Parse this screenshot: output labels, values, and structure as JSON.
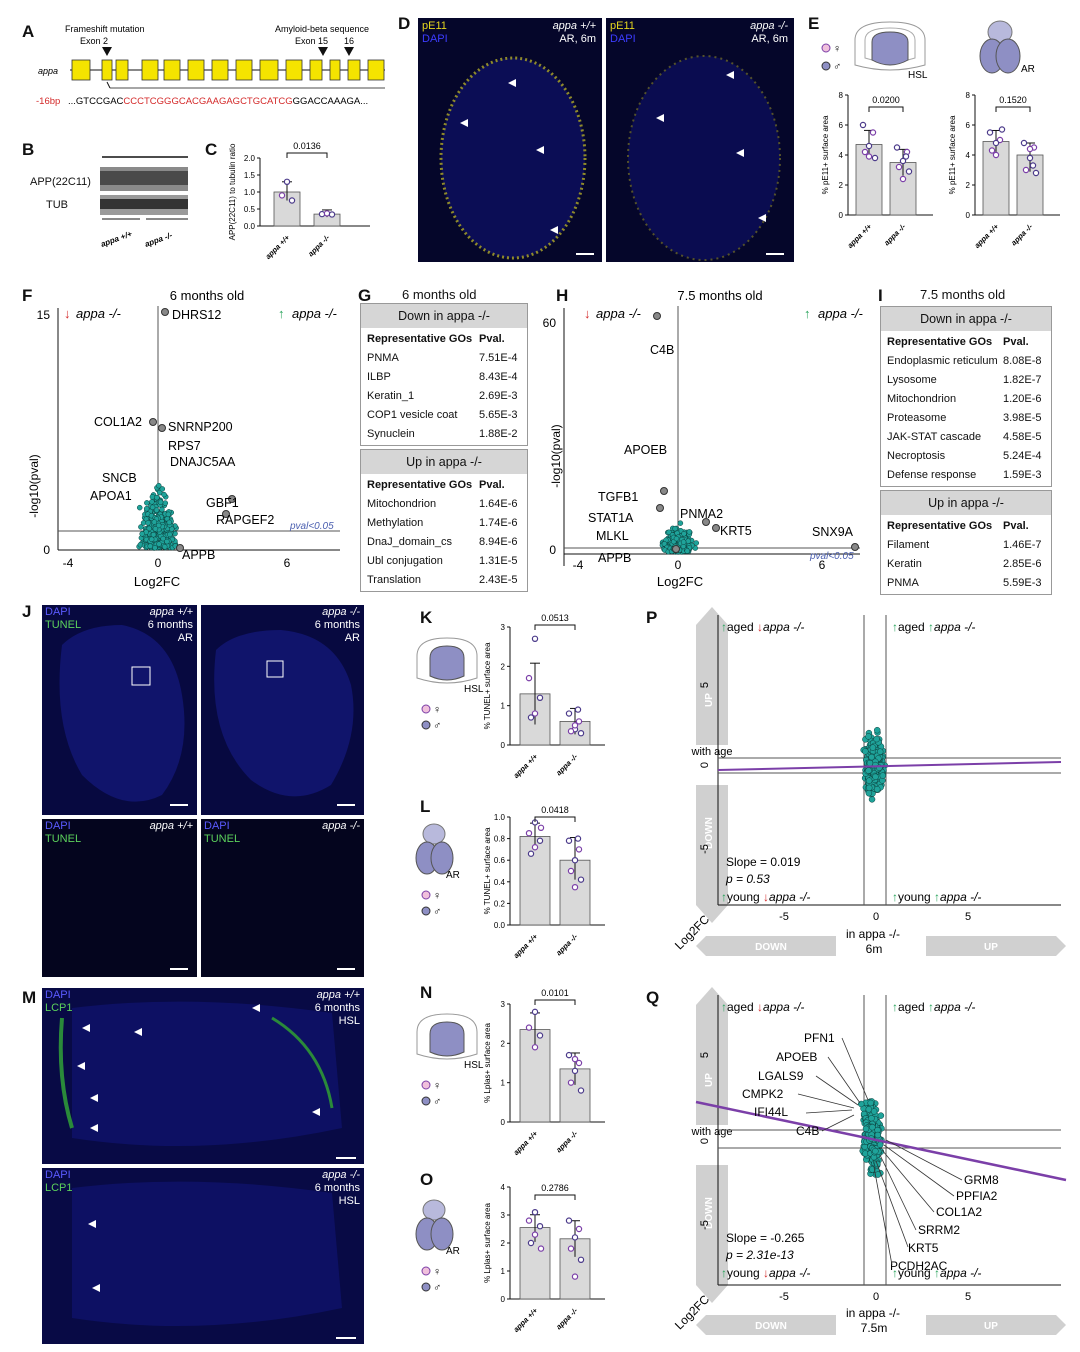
{
  "panels": {
    "A": "A",
    "B": "B",
    "C": "C",
    "D": "D",
    "E": "E",
    "F": "F",
    "G": "G",
    "H": "H",
    "I": "I",
    "J": "J",
    "K": "K",
    "L": "L",
    "M": "M",
    "N": "N",
    "O": "O",
    "P": "P",
    "Q": "Q"
  },
  "panel_a": {
    "gene": "appa",
    "frameshift_label": "Frameshift mutation",
    "exon2_label": "Exon 2",
    "amyloid_label": "Amyloid-beta sequence",
    "exon15_label": "Exon 15",
    "exon16_label": "16",
    "deletion_label": "-16bp",
    "seq_prefix": "...GTCCGAC",
    "seq_deleted": "CCCTCGGGCACGAAGAGCTGCATCG",
    "seq_mid": "GGACC",
    "seq_suffix": "AAAGA...",
    "exon_color": "#f5e400"
  },
  "panel_b": {
    "band1": "APP(22C11)",
    "band2": "TUB",
    "lane1": "appa +/+",
    "lane2": "appa -/-"
  },
  "genotype_wt": "appa +/+",
  "genotype_ko": "appa -/-",
  "sex_female": "♀",
  "sex_male": "♂",
  "panel_c": {
    "ylabel": "APP(22C11) to tubulin ratio",
    "pval": "0.0136",
    "yticks": [
      "0.0",
      "0.5",
      "1.0",
      "1.5",
      "2.0"
    ]
  },
  "panel_d": {
    "stain": "pE11",
    "dapi": "DAPI",
    "left_geno": "appa +/+",
    "right_geno": "appa -/-",
    "cond": "AR, 6m"
  },
  "panel_e": {
    "region1": "HSL",
    "region2": "AR",
    "ylabel": "% pE11+ surface area",
    "pval1": "0.0200",
    "pval2": "0.1520",
    "yticks": [
      "0",
      "2",
      "4",
      "6",
      "8"
    ]
  },
  "panel_f": {
    "title": "6 months old",
    "down": "appa -/-",
    "up": "appa -/-",
    "ylabel": "-log10(pval)",
    "xlabel": "Log2FC",
    "thresh": "pval<0.05",
    "yticks": [
      "0",
      "15"
    ],
    "xticks": [
      "-4",
      "0",
      "6"
    ],
    "genes": [
      "DHRS12",
      "COL1A2",
      "SNRNP200",
      "RPS7",
      "DNAJC5AA",
      "SNCB",
      "APOA1",
      "GBF1",
      "RAPGEF2",
      "APPB"
    ]
  },
  "panel_g": {
    "title": "6 months old",
    "down_title": "Down in appa -/-",
    "up_title": "Up in appa -/-",
    "col1": "Representative GOs",
    "col2": "Pval.",
    "down_rows": [
      [
        "PNMA",
        "7.51E-4"
      ],
      [
        "ILBP",
        "8.43E-4"
      ],
      [
        "Keratin_1",
        "2.69E-3"
      ],
      [
        "COP1 vesicle coat",
        "5.65E-3"
      ],
      [
        "Synuclein",
        "1.88E-2"
      ]
    ],
    "up_rows": [
      [
        "Mitochondrion",
        "1.64E-6"
      ],
      [
        "Methylation",
        "1.74E-6"
      ],
      [
        "DnaJ_domain_cs",
        "8.94E-6"
      ],
      [
        "Ubl conjugation",
        "1.31E-5"
      ],
      [
        "Translation",
        "2.43E-5"
      ]
    ]
  },
  "panel_h": {
    "title": "7.5 months old",
    "down": "appa -/-",
    "up": "appa -/-",
    "ylabel": "-log10(pval)",
    "xlabel": "Log2FC",
    "thresh": "pval<0.05",
    "yticks": [
      "0",
      "60"
    ],
    "xticks": [
      "-4",
      "0",
      "6"
    ],
    "genes": [
      "C4B",
      "APOEB",
      "TGFB1",
      "STAT1A",
      "PNMA2",
      "KRT5",
      "MLKL",
      "APPB",
      "SNX9A"
    ]
  },
  "panel_i": {
    "title": "7.5 months old",
    "down_title": "Down in appa -/-",
    "up_title": "Up in appa -/-",
    "col1": "Representative GOs",
    "col2": "Pval.",
    "down_rows": [
      [
        "Endoplasmic reticulum",
        "8.08E-8"
      ],
      [
        "Lysosome",
        "1.82E-7"
      ],
      [
        "Mitochondrion",
        "1.20E-6"
      ],
      [
        "Proteasome",
        "3.98E-5"
      ],
      [
        "JAK-STAT cascade",
        "4.58E-5"
      ],
      [
        "Necroptosis",
        "5.24E-4"
      ],
      [
        "Defense response",
        "1.59E-3"
      ]
    ],
    "up_rows": [
      [
        "Filament",
        "1.46E-7"
      ],
      [
        "Keratin",
        "2.85E-6"
      ],
      [
        "PNMA",
        "5.59E-3"
      ]
    ]
  },
  "panel_j": {
    "dapi": "DAPI",
    "stain": "TUNEL",
    "wt": "appa +/+",
    "ko": "appa -/-",
    "age": "6 months",
    "region": "AR"
  },
  "panel_k": {
    "region": "HSL",
    "ylabel": "% TUNEL+ surface area",
    "pval": "0.0513",
    "yticks": [
      "0",
      "1",
      "2",
      "3"
    ]
  },
  "panel_l": {
    "region": "AR",
    "ylabel": "% TUNEL+ surface area",
    "pval": "0.0418",
    "yticks": [
      "0.0",
      "0.2",
      "0.4",
      "0.6",
      "0.8",
      "1.0"
    ]
  },
  "panel_m": {
    "dapi": "DAPI",
    "stain": "LCP1",
    "wt": "appa +/+",
    "ko": "appa -/-",
    "age": "6 months",
    "region": "HSL"
  },
  "panel_n": {
    "region": "HSL",
    "ylabel": "% Lplas+ surface area",
    "pval": "0.0101",
    "yticks": [
      "0",
      "1",
      "2",
      "3"
    ]
  },
  "panel_o": {
    "region": "AR",
    "ylabel": "% Lplas+ surface area",
    "pval": "0.2786",
    "yticks": [
      "0",
      "1",
      "2",
      "3",
      "4"
    ]
  },
  "panel_p": {
    "aged": "aged",
    "young": "young",
    "ko": "appa -/-",
    "with_age": "with age",
    "up": "UP",
    "down": "DOWN",
    "slope": "Slope = 0.019",
    "p": "p = 0.53",
    "ylabel": "Log2FC",
    "xlabel": "in appa -/-",
    "xsub": "6m",
    "yticks": [
      "5",
      "0",
      "-5"
    ],
    "xticks": [
      "-5",
      "0",
      "5"
    ]
  },
  "panel_q": {
    "aged": "aged",
    "young": "young",
    "ko": "appa -/-",
    "with_age": "with age",
    "up": "UP",
    "down": "DOWN",
    "slope": "Slope = -0.265",
    "p": "p = 2.31e-13",
    "ylabel": "Log2FC",
    "xlabel": "in appa -/-",
    "xsub": "7.5m",
    "yticks": [
      "5",
      "0",
      "-5"
    ],
    "xticks": [
      "-5",
      "0",
      "5"
    ],
    "genes_left": [
      "PFN1",
      "APOEB",
      "LGALS9",
      "CMPK2",
      "IFI44L",
      "C4B"
    ],
    "genes_right": [
      "GRM8",
      "PPFIA2",
      "COL1A2",
      "SRRM2",
      "KRT5",
      "PCDH2AC"
    ]
  },
  "colors": {
    "teal": "#1fa39a",
    "purple": "#7b3fa8",
    "yellow": "#f5e400",
    "green_arrow": "#27a35a",
    "red_arrow": "#d42a2a",
    "brain": "#8e8fc4",
    "bar": "#d9d9d9"
  },
  "chart_data": [
    {
      "type": "bar",
      "title": "",
      "categories": [
        "appa +/+",
        "appa -/-"
      ],
      "values": [
        1.0,
        0.35
      ],
      "ylabel": "APP(22C11) to tubulin ratio",
      "ylim": [
        0,
        2.0
      ]
    },
    {
      "type": "bar",
      "title": "",
      "categories": [
        "appa +/+",
        "appa -/-"
      ],
      "values": [
        4.7,
        3.5
      ],
      "ylabel": "% pE11+ surface area",
      "ylim": [
        0,
        8
      ]
    },
    {
      "type": "bar",
      "title": "",
      "categories": [
        "appa +/+",
        "appa -/-"
      ],
      "values": [
        4.9,
        4.0
      ],
      "ylabel": "% pE11+ surface area",
      "ylim": [
        0,
        8
      ]
    },
    {
      "type": "bar",
      "title": "",
      "categories": [
        "appa +/+",
        "appa -/-"
      ],
      "values": [
        1.3,
        0.6
      ],
      "ylabel": "% TUNEL+ surface area",
      "ylim": [
        0,
        3
      ]
    },
    {
      "type": "bar",
      "title": "",
      "categories": [
        "appa +/+",
        "appa -/-"
      ],
      "values": [
        0.82,
        0.6
      ],
      "ylabel": "% TUNEL+ surface area",
      "ylim": [
        0,
        1.0
      ]
    },
    {
      "type": "bar",
      "title": "",
      "categories": [
        "appa +/+",
        "appa -/-"
      ],
      "values": [
        2.35,
        1.35
      ],
      "ylabel": "% Lplas+ surface area",
      "ylim": [
        0,
        3
      ]
    },
    {
      "type": "bar",
      "title": "",
      "categories": [
        "appa +/+",
        "appa -/-"
      ],
      "values": [
        2.55,
        2.15
      ],
      "ylabel": "% Lplas+ surface area",
      "ylim": [
        0,
        4
      ]
    }
  ]
}
